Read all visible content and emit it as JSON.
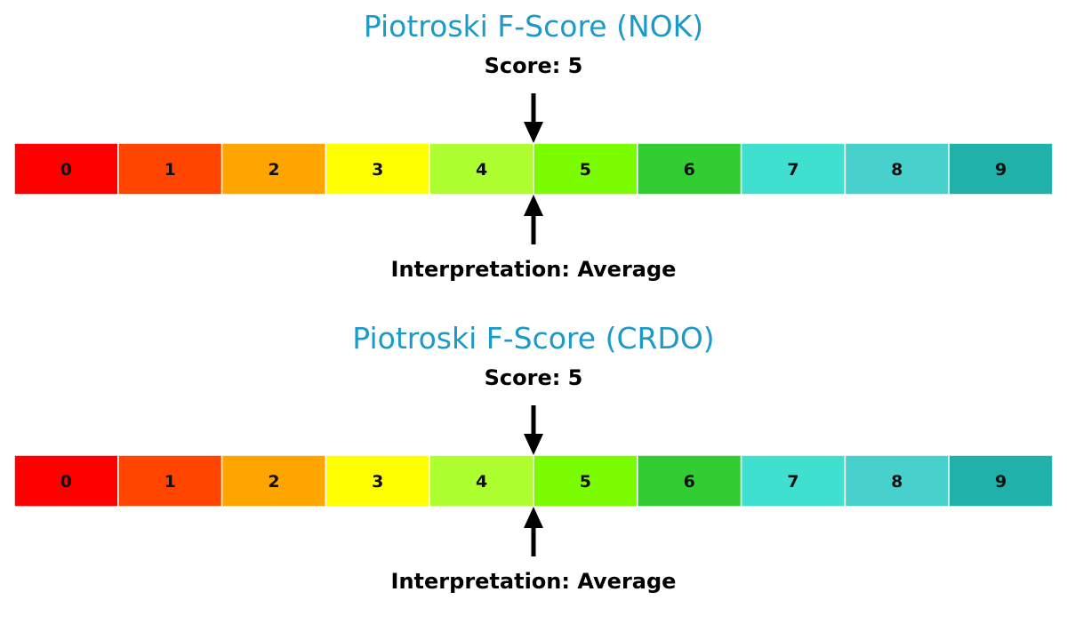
{
  "chart_data": [
    {
      "type": "gauge",
      "title": "Piotroski F-Score (NOK)",
      "score_label": "Score: 5",
      "interpretation_label": "Interpretation: Average",
      "score": 5,
      "categories": [
        "0",
        "1",
        "2",
        "3",
        "4",
        "5",
        "6",
        "7",
        "8",
        "9"
      ],
      "colors": [
        "#ff0000",
        "#ff4500",
        "#ffa500",
        "#ffff00",
        "#adff2f",
        "#7cfc00",
        "#32cd32",
        "#40e0d0",
        "#48d1cc",
        "#20b2aa"
      ]
    },
    {
      "type": "gauge",
      "title": "Piotroski F-Score (CRDO)",
      "score_label": "Score: 5",
      "interpretation_label": "Interpretation: Average",
      "score": 5,
      "categories": [
        "0",
        "1",
        "2",
        "3",
        "4",
        "5",
        "6",
        "7",
        "8",
        "9"
      ],
      "colors": [
        "#ff0000",
        "#ff4500",
        "#ffa500",
        "#ffff00",
        "#adff2f",
        "#7cfc00",
        "#32cd32",
        "#40e0d0",
        "#48d1cc",
        "#20b2aa"
      ]
    }
  ]
}
